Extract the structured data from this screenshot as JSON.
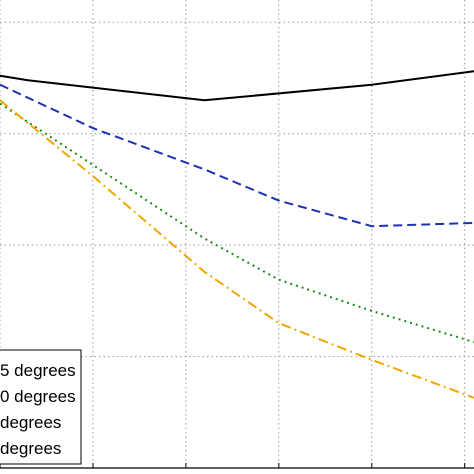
{
  "chart_data": {
    "type": "line",
    "title": "",
    "xlabel": "",
    "ylabel": "",
    "x_grid": [
      0.5,
      1.0,
      1.5,
      2.0,
      2.5,
      3.0
    ],
    "y_grid": [
      1,
      2,
      3,
      4
    ],
    "xlim": [
      0.5,
      3.05
    ],
    "ylim": [
      0,
      4.2
    ],
    "grid": true,
    "legend_placement": "lower-left",
    "series": [
      {
        "name": "5 degrees",
        "color": "#000000",
        "dash": "solid",
        "x": [
          0.5,
          0.65,
          1.6,
          2.5,
          3.05
        ],
        "y": [
          3.52,
          3.48,
          3.3,
          3.44,
          3.56
        ]
      },
      {
        "name": "0 degrees",
        "color": "#1f31b4",
        "dash": "dashed",
        "x": [
          0.5,
          1.0,
          1.6,
          2.0,
          2.5,
          3.05
        ],
        "y": [
          3.44,
          3.05,
          2.68,
          2.4,
          2.17,
          2.2
        ]
      },
      {
        "name": "degrees",
        "color": "#1a8a1a",
        "dash": "dotted",
        "x": [
          0.5,
          1.0,
          1.6,
          2.0,
          2.5,
          3.05
        ],
        "y": [
          3.27,
          2.72,
          2.06,
          1.69,
          1.41,
          1.13
        ]
      },
      {
        "name": "degrees",
        "color": "#f0a800",
        "dash": "dashdot",
        "x": [
          0.5,
          1.0,
          1.6,
          2.0,
          2.5,
          3.05
        ],
        "y": [
          3.3,
          2.62,
          1.76,
          1.3,
          0.97,
          0.63
        ]
      }
    ]
  }
}
